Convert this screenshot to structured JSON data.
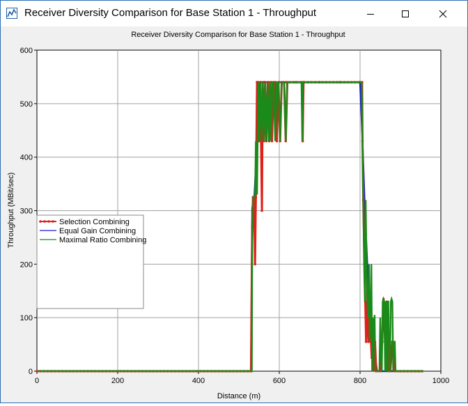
{
  "window": {
    "title": "Receiver Diversity Comparison for Base Station 1 - Throughput",
    "icons": {
      "app": "app-chart-icon",
      "minimize": "minimize-icon",
      "maximize": "maximize-icon",
      "close": "close-icon"
    }
  },
  "chart_data": {
    "type": "line",
    "title": "Receiver Diversity Comparison for Base Station 1 - Throughput",
    "xlabel": "Distance (m)",
    "ylabel": "Throughput (MBit/sec)",
    "xlim": [
      0,
      1000
    ],
    "ylim": [
      0,
      600
    ],
    "xticks": [
      "0",
      "200",
      "400",
      "600",
      "800",
      "1000"
    ],
    "yticks": [
      "0",
      "100",
      "200",
      "300",
      "400",
      "500",
      "600"
    ],
    "grid": true,
    "legend_position": "left-middle",
    "series": [
      {
        "name": "Selection Combining",
        "color": "#e0201b",
        "marker": "dot",
        "points": [
          [
            0,
            0
          ],
          [
            100,
            0
          ],
          [
            200,
            0
          ],
          [
            300,
            0
          ],
          [
            400,
            0
          ],
          [
            530,
            0
          ],
          [
            533,
            270
          ],
          [
            535,
            325
          ],
          [
            538,
            325
          ],
          [
            540,
            200
          ],
          [
            542,
            325
          ],
          [
            545,
            540
          ],
          [
            548,
            540
          ],
          [
            550,
            430
          ],
          [
            553,
            540
          ],
          [
            555,
            430
          ],
          [
            557,
            300
          ],
          [
            559,
            540
          ],
          [
            562,
            430
          ],
          [
            565,
            540
          ],
          [
            568,
            430
          ],
          [
            572,
            540
          ],
          [
            575,
            430
          ],
          [
            578,
            540
          ],
          [
            582,
            430
          ],
          [
            586,
            540
          ],
          [
            590,
            540
          ],
          [
            594,
            430
          ],
          [
            598,
            540
          ],
          [
            602,
            430
          ],
          [
            606,
            540
          ],
          [
            612,
            540
          ],
          [
            616,
            430
          ],
          [
            620,
            540
          ],
          [
            640,
            540
          ],
          [
            656,
            540
          ],
          [
            658,
            430
          ],
          [
            660,
            540
          ],
          [
            700,
            540
          ],
          [
            750,
            540
          ],
          [
            800,
            540
          ],
          [
            805,
            540
          ],
          [
            806,
            430
          ],
          [
            808,
            320
          ],
          [
            811,
            200
          ],
          [
            813,
            130
          ],
          [
            815,
            55
          ],
          [
            818,
            130
          ],
          [
            821,
            55
          ],
          [
            824,
            95
          ],
          [
            827,
            55
          ],
          [
            829,
            25
          ],
          [
            832,
            55
          ],
          [
            834,
            0
          ],
          [
            837,
            55
          ],
          [
            840,
            0
          ],
          [
            843,
            0
          ],
          [
            846,
            0
          ],
          [
            850,
            0
          ],
          [
            855,
            55
          ],
          [
            858,
            135
          ],
          [
            862,
            55
          ],
          [
            866,
            130
          ],
          [
            870,
            0
          ],
          [
            875,
            0
          ],
          [
            880,
            55
          ],
          [
            885,
            0
          ],
          [
            890,
            0
          ],
          [
            900,
            0
          ],
          [
            930,
            0
          ],
          [
            956,
            0
          ]
        ]
      },
      {
        "name": "Equal Gain Combining",
        "color": "#1a1ad4",
        "marker": "none",
        "points": [
          [
            0,
            0
          ],
          [
            530,
            0
          ],
          [
            533,
            305
          ],
          [
            538,
            320
          ],
          [
            545,
            430
          ],
          [
            552,
            540
          ],
          [
            560,
            540
          ],
          [
            800,
            540
          ],
          [
            806,
            430
          ],
          [
            812,
            300
          ],
          [
            818,
            200
          ],
          [
            826,
            100
          ],
          [
            834,
            50
          ],
          [
            842,
            0
          ],
          [
            956,
            0
          ]
        ]
      },
      {
        "name": "Maximal Ratio Combining",
        "color": "#1a8a1a",
        "marker": "none",
        "points": [
          [
            0,
            0
          ],
          [
            100,
            0
          ],
          [
            200,
            0
          ],
          [
            300,
            0
          ],
          [
            400,
            0
          ],
          [
            532,
            0
          ],
          [
            533,
            230
          ],
          [
            536,
            325
          ],
          [
            540,
            325
          ],
          [
            542,
            430
          ],
          [
            545,
            330
          ],
          [
            548,
            540
          ],
          [
            550,
            430
          ],
          [
            553,
            540
          ],
          [
            556,
            430
          ],
          [
            559,
            540
          ],
          [
            562,
            430
          ],
          [
            565,
            540
          ],
          [
            568,
            430
          ],
          [
            571,
            540
          ],
          [
            574,
            430
          ],
          [
            577,
            540
          ],
          [
            580,
            430
          ],
          [
            583,
            540
          ],
          [
            586,
            540
          ],
          [
            590,
            430
          ],
          [
            594,
            540
          ],
          [
            598,
            540
          ],
          [
            602,
            430
          ],
          [
            606,
            540
          ],
          [
            612,
            540
          ],
          [
            616,
            430
          ],
          [
            620,
            540
          ],
          [
            640,
            540
          ],
          [
            655,
            540
          ],
          [
            657,
            430
          ],
          [
            659,
            540
          ],
          [
            700,
            540
          ],
          [
            800,
            540
          ],
          [
            804,
            540
          ],
          [
            806,
            430
          ],
          [
            808,
            320
          ],
          [
            810,
            200
          ],
          [
            812,
            130
          ],
          [
            814,
            320
          ],
          [
            816,
            200
          ],
          [
            818,
            130
          ],
          [
            820,
            100
          ],
          [
            822,
            200
          ],
          [
            824,
            55
          ],
          [
            826,
            100
          ],
          [
            828,
            200
          ],
          [
            830,
            0
          ],
          [
            832,
            100
          ],
          [
            834,
            55
          ],
          [
            836,
            105
          ],
          [
            838,
            0
          ],
          [
            840,
            0
          ],
          [
            848,
            0
          ],
          [
            850,
            100
          ],
          [
            852,
            30
          ],
          [
            854,
            0
          ],
          [
            856,
            130
          ],
          [
            858,
            135
          ],
          [
            860,
            130
          ],
          [
            862,
            0
          ],
          [
            864,
            130
          ],
          [
            866,
            0
          ],
          [
            868,
            130
          ],
          [
            870,
            130
          ],
          [
            872,
            0
          ],
          [
            874,
            0
          ],
          [
            876,
            130
          ],
          [
            878,
            135
          ],
          [
            880,
            130
          ],
          [
            882,
            0
          ],
          [
            884,
            55
          ],
          [
            886,
            55
          ],
          [
            888,
            0
          ],
          [
            890,
            0
          ],
          [
            900,
            0
          ],
          [
            956,
            0
          ]
        ]
      }
    ]
  }
}
